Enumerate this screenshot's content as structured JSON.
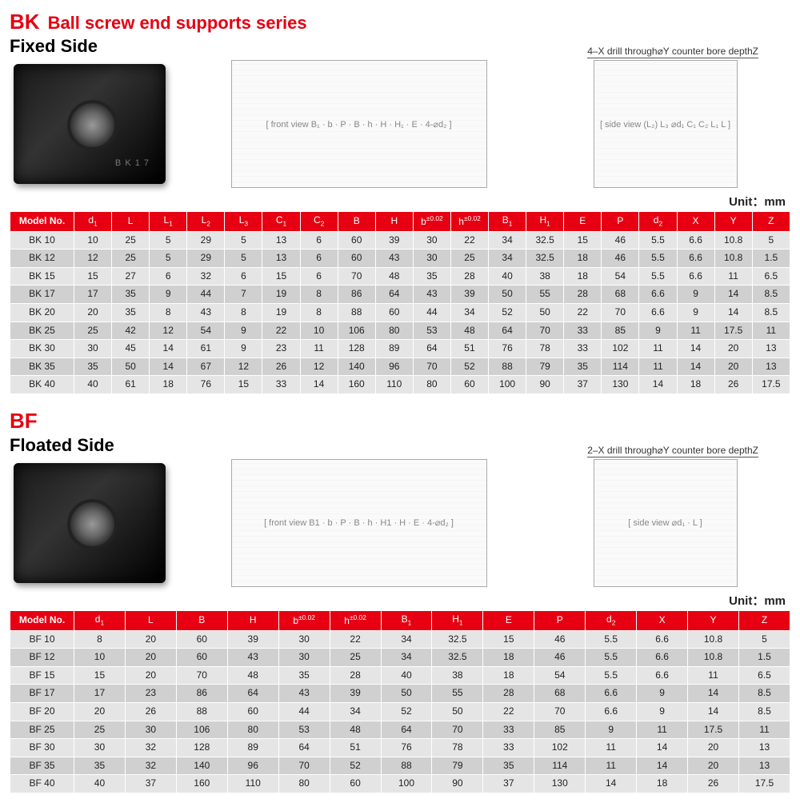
{
  "brand_color": "#e60012",
  "unit_label": "Unit：mm",
  "bk": {
    "code": "BK",
    "title": "Ball screw end supports series",
    "side": "Fixed Side",
    "drill_note": "4–X drill through⌀Y counter bore depthZ",
    "diagram_labels": [
      "B₁",
      "E",
      "4–⌀d₂",
      "b",
      "P",
      "B",
      "h",
      "H",
      "H₁",
      "(L₂)",
      "L₃",
      "C₁",
      "C₂",
      "L₁",
      "L",
      "⌀d₁"
    ],
    "columns": [
      "Model No.",
      "d₁",
      "L",
      "L₁",
      "L₂",
      "L₃",
      "C₁",
      "C₂",
      "B",
      "H",
      "b±0.02",
      "h±0.02",
      "B₁",
      "H₁",
      "E",
      "P",
      "d₂",
      "X",
      "Y",
      "Z"
    ],
    "rows": [
      [
        "BK 10",
        "10",
        "25",
        "5",
        "29",
        "5",
        "13",
        "6",
        "60",
        "39",
        "30",
        "22",
        "34",
        "32.5",
        "15",
        "46",
        "5.5",
        "6.6",
        "10.8",
        "5"
      ],
      [
        "BK 12",
        "12",
        "25",
        "5",
        "29",
        "5",
        "13",
        "6",
        "60",
        "43",
        "30",
        "25",
        "34",
        "32.5",
        "18",
        "46",
        "5.5",
        "6.6",
        "10.8",
        "1.5"
      ],
      [
        "BK 15",
        "15",
        "27",
        "6",
        "32",
        "6",
        "15",
        "6",
        "70",
        "48",
        "35",
        "28",
        "40",
        "38",
        "18",
        "54",
        "5.5",
        "6.6",
        "11",
        "6.5"
      ],
      [
        "BK 17",
        "17",
        "35",
        "9",
        "44",
        "7",
        "19",
        "8",
        "86",
        "64",
        "43",
        "39",
        "50",
        "55",
        "28",
        "68",
        "6.6",
        "9",
        "14",
        "8.5"
      ],
      [
        "BK 20",
        "20",
        "35",
        "8",
        "43",
        "8",
        "19",
        "8",
        "88",
        "60",
        "44",
        "34",
        "52",
        "50",
        "22",
        "70",
        "6.6",
        "9",
        "14",
        "8.5"
      ],
      [
        "BK 25",
        "25",
        "42",
        "12",
        "54",
        "9",
        "22",
        "10",
        "106",
        "80",
        "53",
        "48",
        "64",
        "70",
        "33",
        "85",
        "9",
        "11",
        "17.5",
        "11"
      ],
      [
        "BK 30",
        "30",
        "45",
        "14",
        "61",
        "9",
        "23",
        "11",
        "128",
        "89",
        "64",
        "51",
        "76",
        "78",
        "33",
        "102",
        "11",
        "14",
        "20",
        "13"
      ],
      [
        "BK 35",
        "35",
        "50",
        "14",
        "67",
        "12",
        "26",
        "12",
        "140",
        "96",
        "70",
        "52",
        "88",
        "79",
        "35",
        "114",
        "11",
        "14",
        "20",
        "13"
      ],
      [
        "BK 40",
        "40",
        "61",
        "18",
        "76",
        "15",
        "33",
        "14",
        "160",
        "110",
        "80",
        "60",
        "100",
        "90",
        "37",
        "130",
        "14",
        "18",
        "26",
        "17.5"
      ]
    ]
  },
  "bf": {
    "code": "BF",
    "side": "Floated Side",
    "drill_note": "2–X drill through⌀Y counter bore depthZ",
    "diagram_labels": [
      "B1",
      "E",
      "4–⌀d₂",
      "b",
      "P",
      "B",
      "h",
      "H1",
      "H",
      "⌀d₁",
      "L"
    ],
    "columns": [
      "Model No.",
      "d₁",
      "L",
      "B",
      "H",
      "b±0.02",
      "h±0.02",
      "B₁",
      "H₁",
      "E",
      "P",
      "d₂",
      "X",
      "Y",
      "Z"
    ],
    "rows": [
      [
        "BF 10",
        "8",
        "20",
        "60",
        "39",
        "30",
        "22",
        "34",
        "32.5",
        "15",
        "46",
        "5.5",
        "6.6",
        "10.8",
        "5"
      ],
      [
        "BF 12",
        "10",
        "20",
        "60",
        "43",
        "30",
        "25",
        "34",
        "32.5",
        "18",
        "46",
        "5.5",
        "6.6",
        "10.8",
        "1.5"
      ],
      [
        "BF 15",
        "15",
        "20",
        "70",
        "48",
        "35",
        "28",
        "40",
        "38",
        "18",
        "54",
        "5.5",
        "6.6",
        "11",
        "6.5"
      ],
      [
        "BF 17",
        "17",
        "23",
        "86",
        "64",
        "43",
        "39",
        "50",
        "55",
        "28",
        "68",
        "6.6",
        "9",
        "14",
        "8.5"
      ],
      [
        "BF 20",
        "20",
        "26",
        "88",
        "60",
        "44",
        "34",
        "52",
        "50",
        "22",
        "70",
        "6.6",
        "9",
        "14",
        "8.5"
      ],
      [
        "BF 25",
        "25",
        "30",
        "106",
        "80",
        "53",
        "48",
        "64",
        "70",
        "33",
        "85",
        "9",
        "11",
        "17.5",
        "11"
      ],
      [
        "BF 30",
        "30",
        "32",
        "128",
        "89",
        "64",
        "51",
        "76",
        "78",
        "33",
        "102",
        "11",
        "14",
        "20",
        "13"
      ],
      [
        "BF 35",
        "35",
        "32",
        "140",
        "96",
        "70",
        "52",
        "88",
        "79",
        "35",
        "114",
        "11",
        "14",
        "20",
        "13"
      ],
      [
        "BF 40",
        "40",
        "37",
        "160",
        "110",
        "80",
        "60",
        "100",
        "90",
        "37",
        "130",
        "14",
        "18",
        "26",
        "17.5"
      ]
    ]
  }
}
